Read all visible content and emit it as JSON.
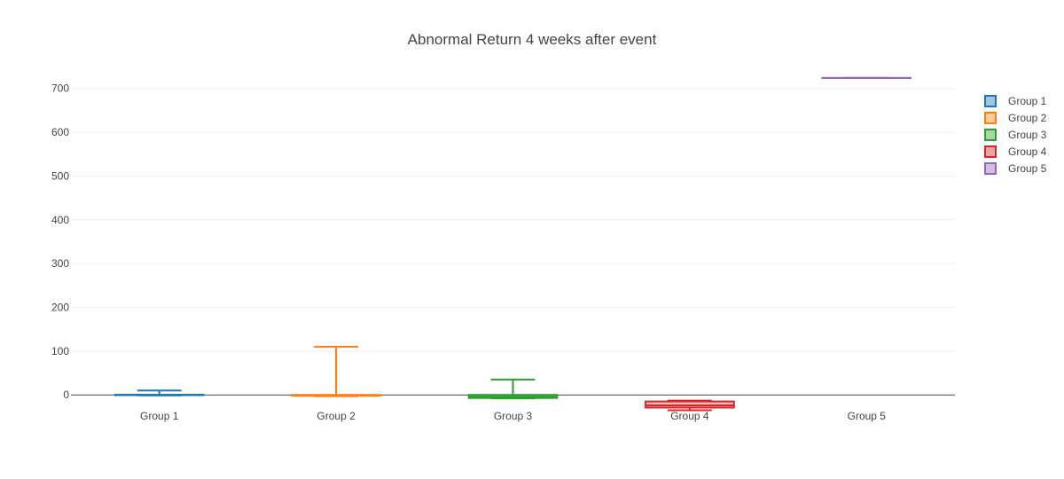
{
  "chart_data": {
    "type": "box",
    "title": "Abnormal Return 4 weeks after event",
    "xlabel": "",
    "ylabel": "",
    "ylim": [
      -30,
      740
    ],
    "yticks": [
      0,
      100,
      200,
      300,
      400,
      500,
      600,
      700
    ],
    "categories": [
      "Group 1",
      "Group 2",
      "Group 3",
      "Group 4",
      "Group 5"
    ],
    "legend_position": "top-right",
    "grid": true,
    "series": [
      {
        "name": "Group 1",
        "color": "#1f77b4",
        "fill": "#8fbbd9",
        "min": -1,
        "q1": -0.5,
        "median": 0,
        "q3": 0.5,
        "max": 10
      },
      {
        "name": "Group 2",
        "color": "#ff7f0e",
        "fill": "#ffbf86",
        "min": -3,
        "q1": -2,
        "median": -1,
        "q3": 0,
        "max": 110
      },
      {
        "name": "Group 3",
        "color": "#2ca02c",
        "fill": "#95cf95",
        "min": -8,
        "q1": -7,
        "median": -4,
        "q3": 0,
        "max": 35
      },
      {
        "name": "Group 4",
        "color": "#d62728",
        "fill": "#ea9293",
        "min": -35,
        "q1": -29,
        "median": -24,
        "q3": -15,
        "max": -13
      },
      {
        "name": "Group 5",
        "color": "#9467bd",
        "fill": "#c9b3de",
        "min": 724,
        "q1": 724,
        "median": 724,
        "q3": 724,
        "max": 724
      }
    ]
  }
}
